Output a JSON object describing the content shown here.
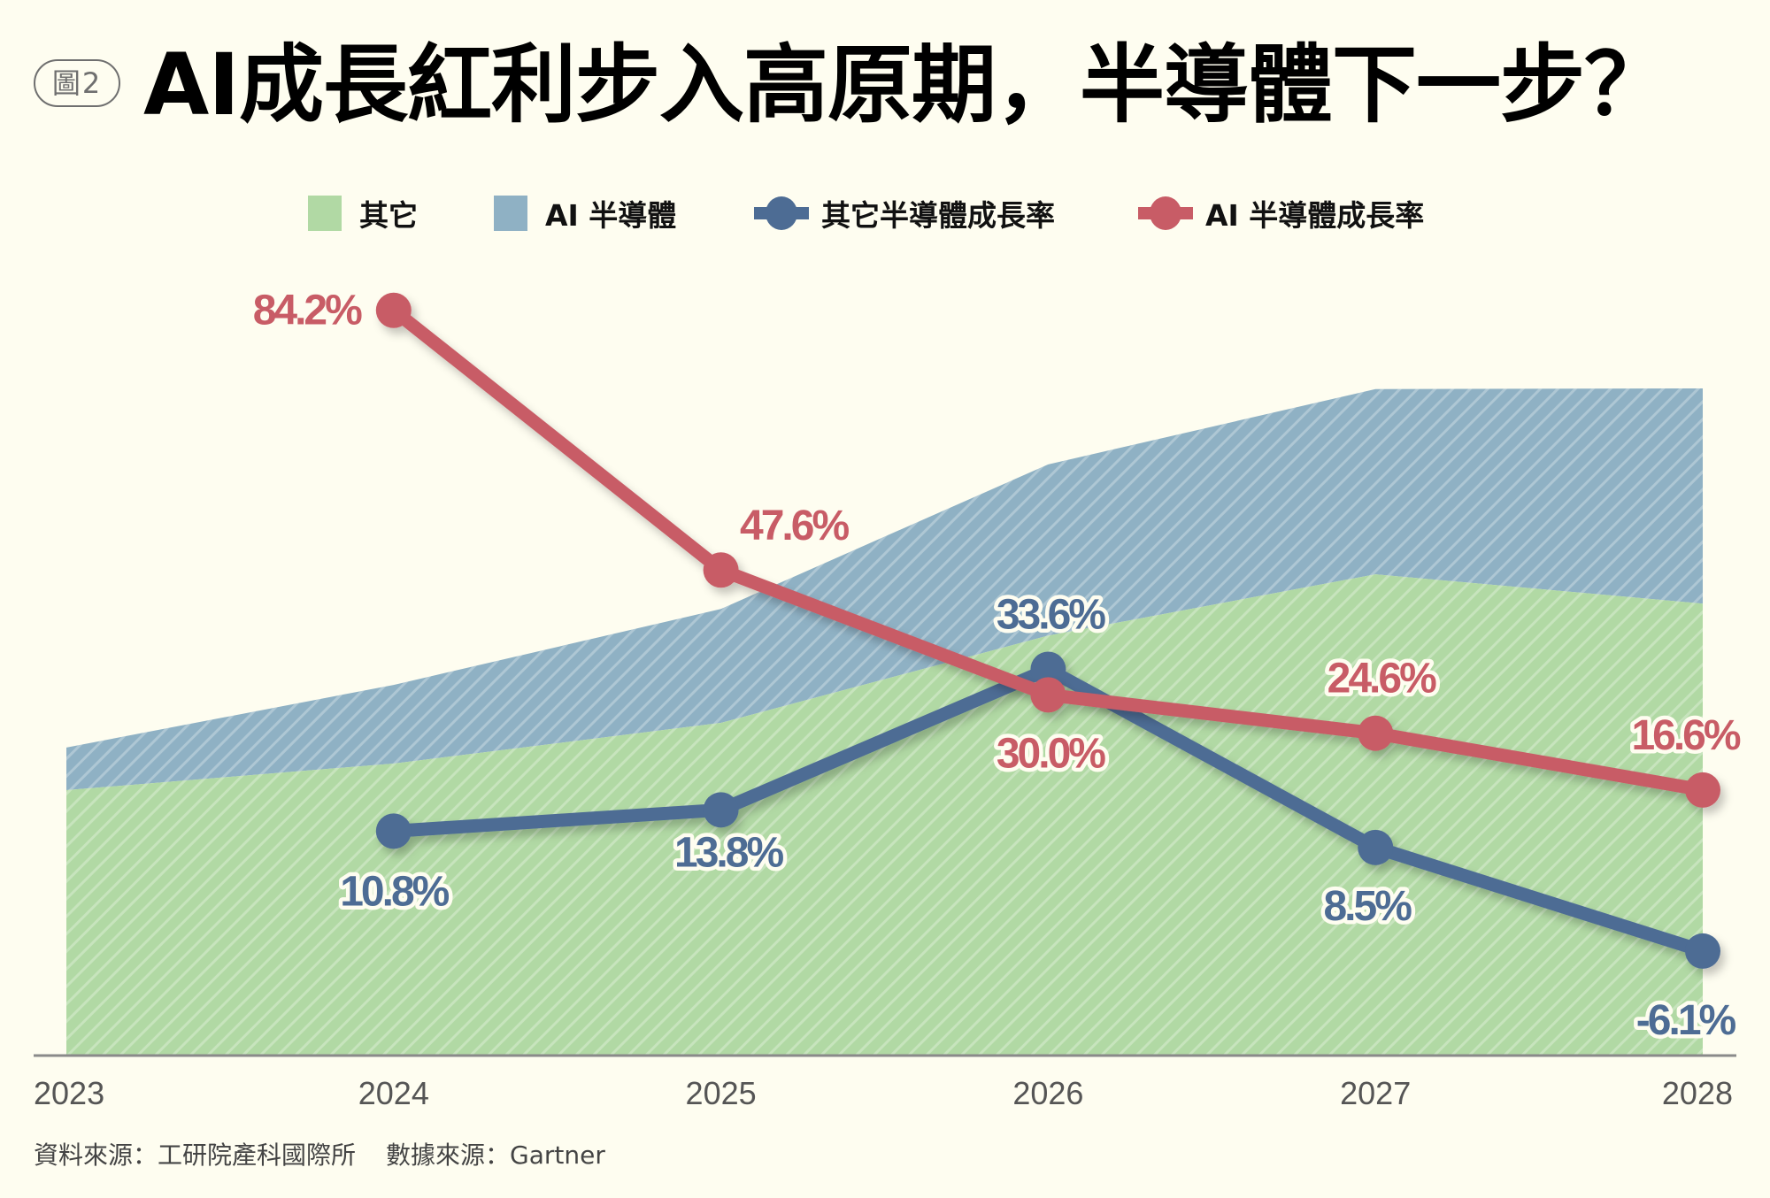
{
  "header": {
    "badge": "圖2",
    "title": "AI成長紅利步入高原期，半導體下一步？"
  },
  "legend": [
    {
      "label": "其它",
      "kind": "area",
      "color": "#b1d9a4"
    },
    {
      "label": "AI 半導體",
      "kind": "area",
      "color": "#8fb1c4"
    },
    {
      "label": "其它半導體成長率",
      "kind": "line",
      "color": "#4d6c94"
    },
    {
      "label": "AI 半導體成長率",
      "kind": "line",
      "color": "#c85c66"
    }
  ],
  "footer": {
    "source_org": "資料來源：工研院產科國際所",
    "source_data": "數據來源：Gartner"
  },
  "colors": {
    "other_area": "#b1d9a4",
    "ai_area": "#8fb1c4",
    "other_line": "#4d6c94",
    "ai_line": "#c85c66",
    "axis": "#8a8a8a",
    "background": "#fefdf0"
  },
  "chart_data": {
    "type": "area",
    "title": "AI成長紅利步入高原期，半導體下一步？",
    "xlabel": "",
    "ylabel": "",
    "grid": false,
    "legend_position": "top",
    "categories": [
      "2023",
      "2024",
      "2025",
      "2026",
      "2027",
      "2028"
    ],
    "stacked_area": {
      "unit": "relative index (no y-axis shown; estimated from area heights, 2028 total = 100)",
      "series": [
        {
          "name": "其它",
          "values": [
            39.7,
            43.7,
            49.8,
            62.9,
            72.1,
            67.7
          ]
        },
        {
          "name": "AI 半導體",
          "values": [
            6.4,
            11.8,
            17.1,
            25.7,
            27.8,
            32.3
          ]
        }
      ]
    },
    "growth_lines": {
      "unit": "%",
      "categories": [
        "2024",
        "2025",
        "2026",
        "2027",
        "2028"
      ],
      "series": [
        {
          "name": "其它半導體成長率",
          "values": [
            10.8,
            13.8,
            33.6,
            8.5,
            -6.1
          ],
          "labels": [
            "10.8%",
            "13.8%",
            "33.6%",
            "8.5%",
            "-6.1%"
          ]
        },
        {
          "name": "AI 半導體成長率",
          "values": [
            84.2,
            47.6,
            30.0,
            24.6,
            16.6
          ],
          "labels": [
            "84.2%",
            "47.6%",
            "30.0%",
            "24.6%",
            "16.6%"
          ]
        }
      ]
    }
  }
}
